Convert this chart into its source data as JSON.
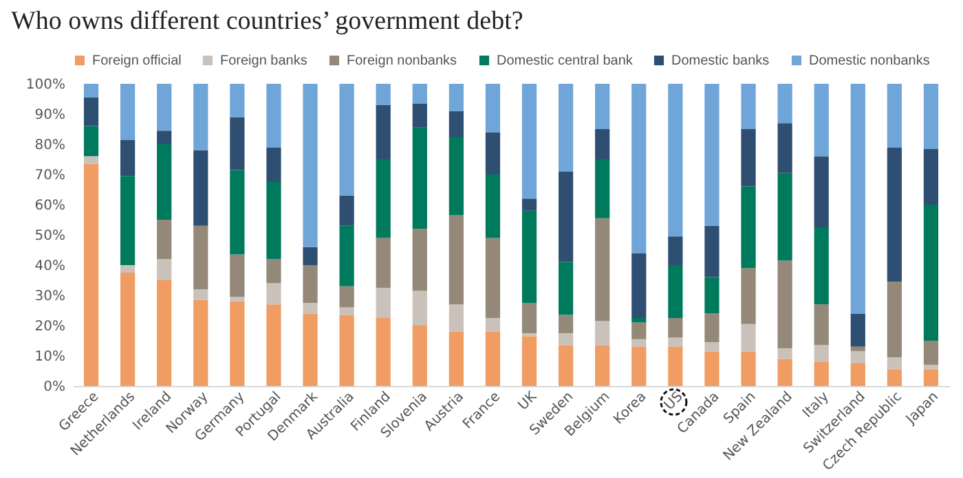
{
  "chart_data": {
    "type": "bar",
    "stacked": true,
    "title": "Who owns different countries’ government debt?",
    "categories": [
      "Greece",
      "Netherlands",
      "Ireland",
      "Norway",
      "Germany",
      "Portugal",
      "Denmark",
      "Australia",
      "Finland",
      "Slovenia",
      "Austria",
      "France",
      "UK",
      "Sweden",
      "Belgium",
      "Korea",
      "US",
      "Canada",
      "Spain",
      "New Zealand",
      "Italy",
      "Switzerland",
      "Czech Republic",
      "Japan"
    ],
    "series": [
      {
        "name": "Foreign official",
        "color": "#f09c62",
        "values": [
          73.5,
          37.5,
          35,
          28.5,
          28,
          27,
          24,
          23.5,
          22.5,
          20,
          18,
          18,
          16.5,
          13.5,
          13.5,
          13,
          13,
          11.5,
          11.5,
          9,
          8,
          7.5,
          5.5,
          5.5
        ]
      },
      {
        "name": "Foreign banks",
        "color": "#cbc1bb",
        "values": [
          2.5,
          2.5,
          7,
          3.5,
          1.5,
          7,
          3.5,
          2.5,
          10,
          11.5,
          9,
          4.5,
          1,
          4,
          8,
          2.5,
          3,
          3,
          9,
          3.5,
          5.5,
          4,
          4,
          1.5
        ]
      },
      {
        "name": "Foreign nonbanks",
        "color": "#948879",
        "values": [
          0,
          0,
          13,
          21,
          14,
          8,
          12.5,
          7,
          16.5,
          20.5,
          29.5,
          26.5,
          10,
          6,
          34,
          5.5,
          6.5,
          9.5,
          18.5,
          29,
          13.5,
          1.5,
          25,
          8
        ]
      },
      {
        "name": "Domestic central bank",
        "color": "#007a5c",
        "values": [
          10,
          29.5,
          25,
          0,
          28,
          25.5,
          0,
          20,
          26,
          33.5,
          26,
          21,
          30.5,
          17.5,
          19.5,
          1.5,
          17.5,
          12,
          27,
          29,
          25.5,
          0,
          0,
          45
        ]
      },
      {
        "name": "Domestic banks",
        "color": "#2e4f72",
        "values": [
          9.5,
          12,
          4.5,
          25,
          17.5,
          11.5,
          6,
          10,
          18,
          8,
          8.5,
          14,
          4,
          30,
          10,
          21.5,
          9.5,
          17,
          19,
          16.5,
          23.5,
          11,
          44.5,
          18.5
        ]
      },
      {
        "name": "Domestic nonbanks",
        "color": "#6fa5d8",
        "values": [
          4.5,
          18.5,
          15.5,
          22,
          11,
          21,
          54,
          37,
          7,
          6.5,
          9,
          16,
          38,
          29,
          15,
          56,
          50.5,
          47,
          15,
          13,
          24,
          76,
          21,
          21.5
        ]
      }
    ],
    "ylim": [
      0,
      100
    ],
    "yticks": [
      {
        "value": 0,
        "label": "0%"
      },
      {
        "value": 10,
        "label": "10%"
      },
      {
        "value": 20,
        "label": "20%"
      },
      {
        "value": 30,
        "label": "30%"
      },
      {
        "value": 40,
        "label": "40%"
      },
      {
        "value": 50,
        "label": "50%"
      },
      {
        "value": 60,
        "label": "60%"
      },
      {
        "value": 70,
        "label": "70%"
      },
      {
        "value": 80,
        "label": "80%"
      },
      {
        "value": 90,
        "label": "90%"
      },
      {
        "value": 100,
        "label": "100%"
      }
    ],
    "grid": false,
    "legend": "top"
  }
}
